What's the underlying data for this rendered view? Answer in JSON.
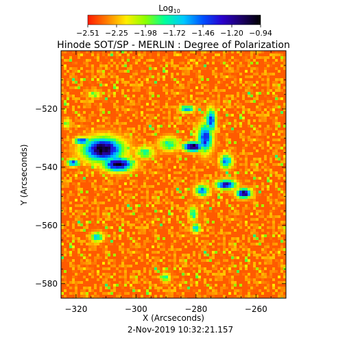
{
  "chart_data": {
    "type": "heatmap",
    "title": "Hinode SOT/SP - MERLIN : Degree of Polarization",
    "xlabel": "X (Arcseconds)",
    "ylabel": "Y (Arcseconds)",
    "date_label": "2-Nov-2019 10:32:21.157",
    "xlim": [
      -325,
      -250
    ],
    "ylim": [
      -585,
      -500
    ],
    "x_ticks": [
      -320,
      -300,
      -280,
      -260
    ],
    "x_tick_labels": [
      "−320",
      "−300",
      "−280",
      "−260"
    ],
    "y_ticks": [
      -520,
      -540,
      -560,
      -580
    ],
    "y_tick_labels": [
      "−520",
      "−540",
      "−560",
      "−580"
    ],
    "colorbar": {
      "title": "Log",
      "title_subscript": "10",
      "range": [
        -2.51,
        -0.94
      ],
      "tick_labels": [
        "−2.51",
        "−2.25",
        "−1.98",
        "−1.72",
        "−1.46",
        "−1.20",
        "−0.94"
      ],
      "colors": [
        "#ff1a00",
        "#ff7f00",
        "#ffee00",
        "#8cff00",
        "#00ff9a",
        "#00c8ff",
        "#0050ff",
        "#2a00cc",
        "#1c0066",
        "#000000"
      ]
    },
    "background_level": -2.4,
    "features": [
      {
        "x": -311,
        "y": -534,
        "rx": 8,
        "ry": 5,
        "level": -0.97
      },
      {
        "x": -306,
        "y": -539,
        "rx": 6,
        "ry": 3,
        "level": -1.05
      },
      {
        "x": -318,
        "y": -531,
        "rx": 3,
        "ry": 1.5,
        "level": -1.3
      },
      {
        "x": -321,
        "y": -538.5,
        "rx": 2.5,
        "ry": 1.5,
        "level": -1.35
      },
      {
        "x": -297,
        "y": -535,
        "rx": 4,
        "ry": 2.5,
        "level": -1.8
      },
      {
        "x": -289,
        "y": -532,
        "rx": 4,
        "ry": 3,
        "level": -1.75
      },
      {
        "x": -281,
        "y": -533,
        "rx": 4,
        "ry": 2,
        "level": -0.97
      },
      {
        "x": -277,
        "y": -530,
        "rx": 3,
        "ry": 6,
        "level": -1.3
      },
      {
        "x": -275,
        "y": -524,
        "rx": 2,
        "ry": 5,
        "level": -1.35
      },
      {
        "x": -283,
        "y": -520,
        "rx": 3,
        "ry": 1.5,
        "level": -1.5
      },
      {
        "x": -270,
        "y": -538,
        "rx": 2.5,
        "ry": 3,
        "level": -1.5
      },
      {
        "x": -270,
        "y": -546,
        "rx": 4,
        "ry": 2,
        "level": -1.2
      },
      {
        "x": -264,
        "y": -549,
        "rx": 3,
        "ry": 2,
        "level": -1.05
      },
      {
        "x": -278,
        "y": -548,
        "rx": 3,
        "ry": 2.5,
        "level": -1.55
      },
      {
        "x": -281,
        "y": -556,
        "rx": 1.8,
        "ry": 3,
        "level": -1.7
      },
      {
        "x": -280,
        "y": -561,
        "rx": 1.8,
        "ry": 2,
        "level": -1.6
      },
      {
        "x": -313,
        "y": -564,
        "rx": 2.5,
        "ry": 2,
        "level": -1.6
      },
      {
        "x": -290,
        "y": -578,
        "rx": 1.8,
        "ry": 2,
        "level": -1.8
      },
      {
        "x": -314,
        "y": -515,
        "rx": 2.5,
        "ry": 1.5,
        "level": -1.9
      },
      {
        "x": -323,
        "y": -525,
        "rx": 1.5,
        "ry": 2,
        "level": -1.9
      }
    ]
  }
}
